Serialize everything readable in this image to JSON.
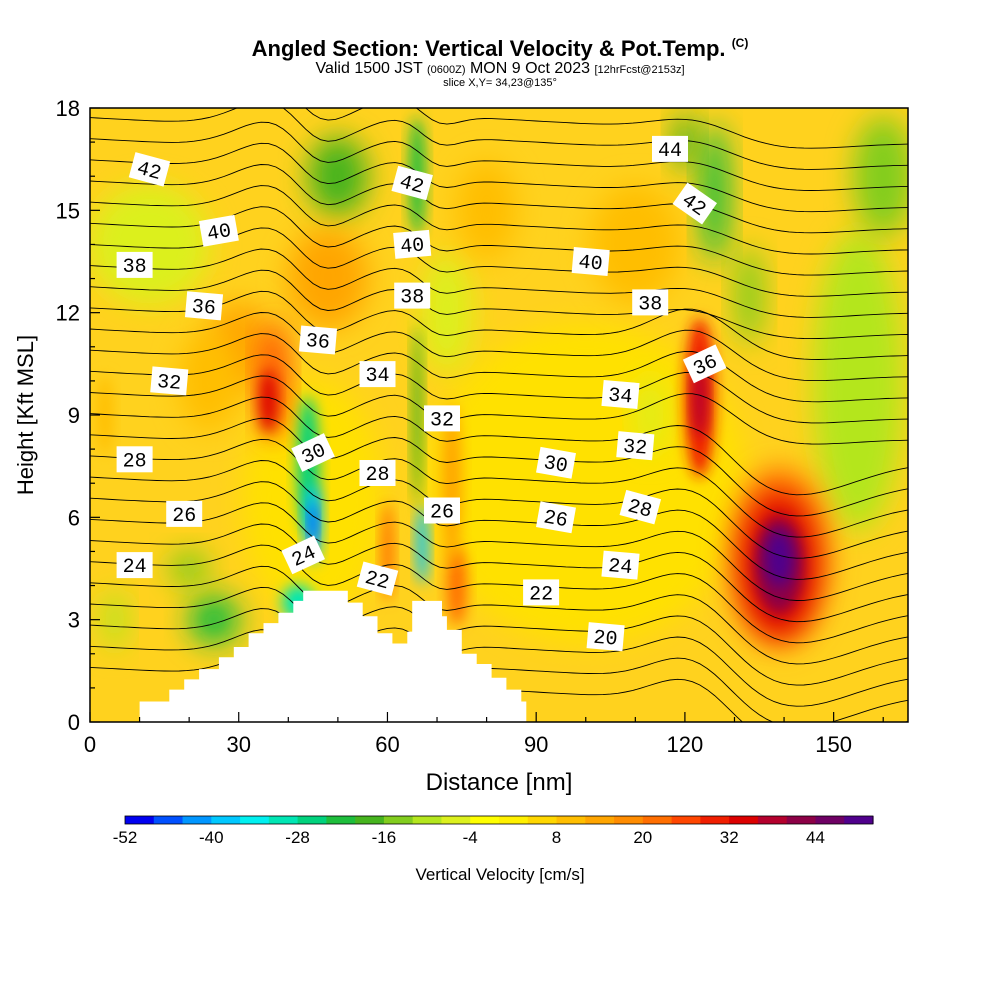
{
  "chart_data": {
    "type": "heatmap",
    "title": "Angled Section: Vertical Velocity & Pot.Temp.",
    "title_mark": "(C)",
    "subtitle": {
      "valid": "Valid 1500 JST",
      "utc": "(0600Z)",
      "date": "MON 9 Oct 2023",
      "forecast": "[12hrFcst@2153z]"
    },
    "slice_note": "slice X,Y= 34,23@135°",
    "xlabel": "Distance [nm]",
    "ylabel": "Height [Kft MSL]",
    "xlim": [
      0,
      165
    ],
    "ylim": [
      0,
      18
    ],
    "xticks": [
      0,
      30,
      60,
      90,
      120,
      150
    ],
    "yticks": [
      0,
      3,
      6,
      9,
      12,
      15,
      18
    ],
    "grid": false,
    "colorbar": {
      "label": "Vertical Velocity [cm/s]",
      "min": -52,
      "max": 52,
      "tick_labels": [
        "-52",
        "-40",
        "-28",
        "-16",
        "-4",
        "8",
        "20",
        "32",
        "44"
      ],
      "colors": [
        "#0000f0",
        "#0050ff",
        "#0096ff",
        "#00c8ff",
        "#00f0f0",
        "#00e6b4",
        "#00d27d",
        "#1ebe3c",
        "#46b41e",
        "#82cd1e",
        "#b4e61e",
        "#dcf01e",
        "#ffff00",
        "#fff000",
        "#ffd700",
        "#ffbe00",
        "#ffa500",
        "#ff8c00",
        "#ff6e00",
        "#ff4600",
        "#f01e00",
        "#dc0000",
        "#b4002d",
        "#8c0046",
        "#6e0064",
        "#50008c"
      ]
    },
    "series": [
      {
        "name": "Vertical Velocity [cm/s]",
        "kind": "filled-contour",
        "features": [
          {
            "feature": "background",
            "value": 6
          },
          {
            "feature": "updraft",
            "x": 37,
            "y": 9.5,
            "value": 38
          },
          {
            "feature": "downdraft",
            "x": 44,
            "y": 6,
            "value": -48
          },
          {
            "feature": "downdraft",
            "x": 68,
            "y": 5,
            "value": -30
          },
          {
            "feature": "updraft",
            "x": 74,
            "y": 4,
            "value": 24
          },
          {
            "feature": "downdraft",
            "x": 25,
            "y": 2.5,
            "value": -22
          },
          {
            "feature": "updraft",
            "x": 123,
            "y": 9.5,
            "value": 40
          },
          {
            "feature": "updraft",
            "x": 139,
            "y": 4.8,
            "value": 52
          },
          {
            "feature": "downdraft",
            "x": 125,
            "y": 16,
            "value": -18
          },
          {
            "feature": "downdraft",
            "x": 155,
            "y": 10,
            "value": -6
          }
        ]
      },
      {
        "name": "Pot.Temp.",
        "kind": "contour-lines",
        "levels": [
          18,
          19,
          20,
          21,
          22,
          23,
          24,
          25,
          26,
          27,
          28,
          29,
          30,
          31,
          32,
          33,
          34,
          35,
          36,
          37,
          38,
          39,
          40,
          41,
          42,
          43,
          44,
          45
        ]
      }
    ],
    "contour_labels": [
      {
        "text": "42",
        "x": 12,
        "y": 16.2,
        "angle": 15
      },
      {
        "text": "40",
        "x": 26,
        "y": 14.4,
        "angle": -10
      },
      {
        "text": "38",
        "x": 9,
        "y": 13.4,
        "angle": 0
      },
      {
        "text": "36",
        "x": 23,
        "y": 12.2,
        "angle": 5
      },
      {
        "text": "32",
        "x": 16,
        "y": 10.0,
        "angle": 5
      },
      {
        "text": "28",
        "x": 9,
        "y": 7.7,
        "angle": 0
      },
      {
        "text": "26",
        "x": 19,
        "y": 6.1,
        "angle": 0
      },
      {
        "text": "24",
        "x": 9,
        "y": 4.6,
        "angle": 0
      },
      {
        "text": "36",
        "x": 46,
        "y": 11.2,
        "angle": 5
      },
      {
        "text": "30",
        "x": 45,
        "y": 7.9,
        "angle": -25
      },
      {
        "text": "24",
        "x": 43,
        "y": 4.9,
        "angle": -25
      },
      {
        "text": "42",
        "x": 65,
        "y": 15.8,
        "angle": 15
      },
      {
        "text": "40",
        "x": 65,
        "y": 14.0,
        "angle": -5
      },
      {
        "text": "38",
        "x": 65,
        "y": 12.5,
        "angle": 0
      },
      {
        "text": "34",
        "x": 58,
        "y": 10.2,
        "angle": 0
      },
      {
        "text": "28",
        "x": 58,
        "y": 7.3,
        "angle": 0
      },
      {
        "text": "22",
        "x": 58,
        "y": 4.2,
        "angle": 15
      },
      {
        "text": "32",
        "x": 71,
        "y": 8.9,
        "angle": 0
      },
      {
        "text": "26",
        "x": 71,
        "y": 6.2,
        "angle": 0
      },
      {
        "text": "44",
        "x": 117,
        "y": 16.8,
        "angle": 0
      },
      {
        "text": "42",
        "x": 122,
        "y": 15.2,
        "angle": 35
      },
      {
        "text": "40",
        "x": 101,
        "y": 13.5,
        "angle": 5
      },
      {
        "text": "38",
        "x": 113,
        "y": 12.3,
        "angle": 0
      },
      {
        "text": "36",
        "x": 124,
        "y": 10.5,
        "angle": -25
      },
      {
        "text": "34",
        "x": 107,
        "y": 9.6,
        "angle": 5
      },
      {
        "text": "32",
        "x": 110,
        "y": 8.1,
        "angle": 5
      },
      {
        "text": "30",
        "x": 94,
        "y": 7.6,
        "angle": 10
      },
      {
        "text": "28",
        "x": 111,
        "y": 6.3,
        "angle": 15
      },
      {
        "text": "26",
        "x": 94,
        "y": 6.0,
        "angle": 10
      },
      {
        "text": "24",
        "x": 107,
        "y": 4.6,
        "angle": 5
      },
      {
        "text": "22",
        "x": 91,
        "y": 3.8,
        "angle": 0
      },
      {
        "text": "20",
        "x": 104,
        "y": 2.5,
        "angle": 5
      }
    ],
    "terrain": [
      [
        10,
        0.4
      ],
      [
        10,
        0.6
      ],
      [
        16,
        0.6
      ],
      [
        16,
        0.95
      ],
      [
        19,
        0.95
      ],
      [
        19,
        1.25
      ],
      [
        22,
        1.25
      ],
      [
        22,
        1.55
      ],
      [
        26,
        1.55
      ],
      [
        26,
        1.9
      ],
      [
        29,
        1.9
      ],
      [
        29,
        2.2
      ],
      [
        32,
        2.2
      ],
      [
        32,
        2.6
      ],
      [
        35,
        2.6
      ],
      [
        35,
        2.9
      ],
      [
        38,
        2.9
      ],
      [
        38,
        3.2
      ],
      [
        41,
        3.2
      ],
      [
        41,
        3.55
      ],
      [
        43,
        3.55
      ],
      [
        43,
        3.85
      ],
      [
        52,
        3.85
      ],
      [
        52,
        3.5
      ],
      [
        55,
        3.5
      ],
      [
        55,
        3.1
      ],
      [
        58,
        3.1
      ],
      [
        58,
        2.6
      ],
      [
        61,
        2.6
      ],
      [
        61,
        2.3
      ],
      [
        64,
        2.3
      ],
      [
        64,
        2.65
      ],
      [
        65,
        2.65
      ],
      [
        65,
        3.55
      ],
      [
        71,
        3.55
      ],
      [
        71,
        3.1
      ],
      [
        72,
        3.1
      ],
      [
        72,
        2.7
      ],
      [
        75,
        2.7
      ],
      [
        75,
        2.0
      ],
      [
        78,
        2.0
      ],
      [
        78,
        1.7
      ],
      [
        81,
        1.7
      ],
      [
        81,
        1.3
      ],
      [
        84,
        1.3
      ],
      [
        84,
        0.95
      ],
      [
        87,
        0.95
      ],
      [
        87,
        0.6
      ],
      [
        88,
        0.6
      ],
      [
        88,
        0.4
      ]
    ]
  }
}
